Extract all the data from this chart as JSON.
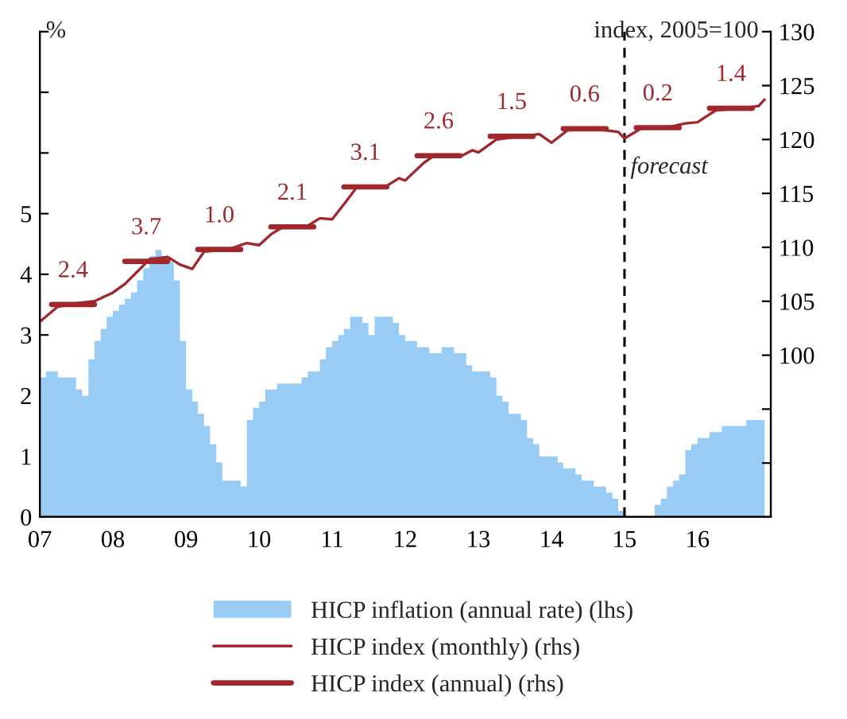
{
  "chart_data": {
    "type": "area",
    "ylabel": "%",
    "y2label": "index, 2005=100",
    "xlim": [
      "2007-01",
      "2017-01"
    ],
    "xticks": [
      {
        "value": "2007-01",
        "label": "07"
      },
      {
        "value": "2008-01",
        "label": "08"
      },
      {
        "value": "2009-01",
        "label": "09"
      },
      {
        "value": "2010-01",
        "label": "10"
      },
      {
        "value": "2011-01",
        "label": "11"
      },
      {
        "value": "2012-01",
        "label": "12"
      },
      {
        "value": "2013-01",
        "label": "13"
      },
      {
        "value": "2014-01",
        "label": "14"
      },
      {
        "value": "2015-01",
        "label": "15"
      },
      {
        "value": "2016-01",
        "label": "16"
      }
    ],
    "ylim": [
      0,
      8
    ],
    "yticks": [
      0,
      1,
      2,
      3,
      4,
      5,
      {
        "value": 6,
        "label": null
      },
      {
        "value": 7,
        "label": null
      },
      {
        "value": 8,
        "label": null
      }
    ],
    "y2lim": [
      85,
      130
    ],
    "y2ticks": [
      {
        "value": 85,
        "label": null
      },
      {
        "value": 90,
        "label": null
      },
      {
        "value": 95,
        "label": null
      },
      100,
      105,
      110,
      115,
      120,
      125,
      130
    ],
    "grid": false,
    "legend": "bottom",
    "ref_lines": [
      {
        "axis": "x",
        "value": "2015-01",
        "label": "forecast",
        "color": "#000000",
        "line_style": "dashed"
      }
    ],
    "series": [
      {
        "name": "HICP inflation (annual rate) (lhs)",
        "color": "#99ccf5",
        "x": [
          "2007-01",
          "2007-02",
          "2007-03",
          "2007-04",
          "2007-05",
          "2007-06",
          "2007-07",
          "2007-08",
          "2007-09",
          "2007-10",
          "2007-11",
          "2007-12",
          "2008-01",
          "2008-02",
          "2008-03",
          "2008-04",
          "2008-05",
          "2008-06",
          "2008-07",
          "2008-08",
          "2008-09",
          "2008-10",
          "2008-11",
          "2008-12",
          "2009-01",
          "2009-02",
          "2009-03",
          "2009-04",
          "2009-05",
          "2009-06",
          "2009-07",
          "2009-08",
          "2009-09",
          "2009-10",
          "2009-11",
          "2009-12",
          "2010-01",
          "2010-02",
          "2010-03",
          "2010-04",
          "2010-05",
          "2010-06",
          "2010-07",
          "2010-08",
          "2010-09",
          "2010-10",
          "2010-11",
          "2010-12",
          "2011-01",
          "2011-02",
          "2011-03",
          "2011-04",
          "2011-05",
          "2011-06",
          "2011-07",
          "2011-08",
          "2011-09",
          "2011-10",
          "2011-11",
          "2011-12",
          "2012-01",
          "2012-02",
          "2012-03",
          "2012-04",
          "2012-05",
          "2012-06",
          "2012-07",
          "2012-08",
          "2012-09",
          "2012-10",
          "2012-11",
          "2012-12",
          "2013-01",
          "2013-02",
          "2013-03",
          "2013-04",
          "2013-05",
          "2013-06",
          "2013-07",
          "2013-08",
          "2013-09",
          "2013-10",
          "2013-11",
          "2013-12",
          "2014-01",
          "2014-02",
          "2014-03",
          "2014-04",
          "2014-05",
          "2014-06",
          "2014-07",
          "2014-08",
          "2014-09",
          "2014-10",
          "2014-11",
          "2014-12",
          "2015-01",
          "2015-02",
          "2015-03",
          "2015-04",
          "2015-05",
          "2015-06",
          "2015-07",
          "2015-08",
          "2015-09",
          "2015-10",
          "2015-11",
          "2015-12",
          "2016-01",
          "2016-02",
          "2016-03",
          "2016-04",
          "2016-05",
          "2016-06",
          "2016-07",
          "2016-08",
          "2016-09",
          "2016-10",
          "2016-11",
          "2016-12"
        ],
        "values": [
          2.3,
          2.4,
          2.4,
          2.3,
          2.3,
          2.3,
          2.1,
          2.0,
          2.6,
          2.9,
          3.1,
          3.3,
          3.4,
          3.5,
          3.6,
          3.7,
          3.9,
          4.1,
          4.3,
          4.4,
          4.3,
          4.2,
          3.9,
          2.9,
          2.1,
          1.9,
          1.7,
          1.5,
          1.2,
          0.9,
          0.6,
          0.6,
          0.6,
          0.5,
          1.6,
          1.8,
          1.9,
          2.1,
          2.1,
          2.2,
          2.2,
          2.2,
          2.2,
          2.3,
          2.4,
          2.4,
          2.6,
          2.8,
          2.9,
          3.0,
          3.1,
          3.3,
          3.3,
          3.2,
          3.0,
          3.3,
          3.3,
          3.3,
          3.2,
          3.0,
          2.9,
          2.9,
          2.8,
          2.8,
          2.7,
          2.7,
          2.8,
          2.8,
          2.7,
          2.7,
          2.5,
          2.4,
          2.4,
          2.4,
          2.3,
          2.0,
          1.9,
          1.7,
          1.7,
          1.6,
          1.3,
          1.2,
          1.0,
          1.0,
          1.0,
          0.9,
          0.8,
          0.8,
          0.7,
          0.6,
          0.6,
          0.5,
          0.5,
          0.4,
          0.3,
          0.1,
          0.0,
          0.0,
          0.0,
          0.0,
          0.0,
          0.2,
          0.3,
          0.5,
          0.6,
          0.7,
          1.1,
          1.2,
          1.3,
          1.3,
          1.4,
          1.4,
          1.5,
          1.5,
          1.5,
          1.5,
          1.6,
          1.6,
          1.6,
          1.6
        ]
      },
      {
        "name": "HICP index (monthly) (rhs)",
        "type": "line",
        "axis": "y2",
        "color": "#a0282d",
        "x": [
          "2007-01",
          "2007-04",
          "2007-07",
          "2007-10",
          "2008-01",
          "2008-03",
          "2008-06",
          "2008-07",
          "2008-10",
          "2008-12",
          "2009-02",
          "2009-04",
          "2009-08",
          "2009-11",
          "2010-01",
          "2010-03",
          "2010-05",
          "2010-09",
          "2010-11",
          "2011-01",
          "2011-03",
          "2011-05",
          "2011-10",
          "2011-12",
          "2012-01",
          "2012-04",
          "2012-06",
          "2012-10",
          "2012-12",
          "2013-01",
          "2013-04",
          "2013-08",
          "2013-11",
          "2014-01",
          "2014-04",
          "2014-08",
          "2014-12",
          "2015-01",
          "2015-04",
          "2015-08",
          "2015-11",
          "2016-01",
          "2016-04",
          "2016-08",
          "2016-11",
          "2016-12"
        ],
        "values": [
          103.1,
          104.5,
          104.8,
          105.0,
          105.8,
          106.6,
          108.3,
          108.9,
          109.1,
          108.4,
          108.0,
          109.6,
          109.8,
          110.4,
          110.2,
          111.2,
          111.9,
          112.0,
          112.7,
          112.6,
          114.0,
          115.5,
          115.7,
          116.4,
          116.2,
          117.8,
          118.6,
          118.4,
          119.0,
          118.8,
          120.0,
          120.3,
          120.5,
          119.7,
          121.0,
          121.0,
          120.7,
          120.1,
          121.1,
          121.1,
          121.5,
          121.6,
          122.7,
          122.9,
          123.1,
          123.7
        ]
      },
      {
        "name": "HICP index (annual) (rhs)",
        "type": "line",
        "axis": "y2",
        "color": "#a0282d",
        "x": [
          "2007-03",
          "2007-10",
          "2007-12",
          "2008-03",
          "2008-10",
          "2008-12",
          "2009-03",
          "2009-10",
          "2009-12",
          "2010-03",
          "2010-10",
          "2010-12",
          "2011-03",
          "2011-10",
          "2011-12",
          "2012-03",
          "2012-10",
          "2012-12",
          "2013-03",
          "2013-10",
          "2013-12",
          "2014-03",
          "2014-10",
          "2014-12",
          "2015-03",
          "2015-10",
          "2015-12",
          "2016-03",
          "2016-10"
        ],
        "values": [
          104.7,
          104.7,
          null,
          108.7,
          108.7,
          null,
          109.8,
          109.8,
          null,
          111.9,
          111.9,
          null,
          115.6,
          115.6,
          null,
          118.5,
          118.5,
          null,
          120.3,
          120.3,
          null,
          121.0,
          121.0,
          null,
          121.1,
          121.1,
          null,
          122.9,
          122.9
        ]
      }
    ],
    "annotations": [
      "2.4",
      "3.7",
      "1.0",
      "2.1",
      "3.1",
      "2.6",
      "1.5",
      "0.6",
      "0.2",
      "1.4"
    ]
  }
}
